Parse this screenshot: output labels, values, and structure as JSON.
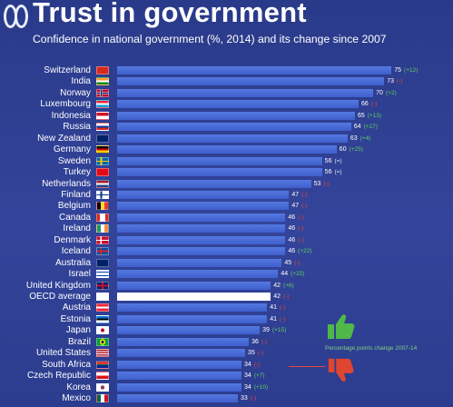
{
  "header": {
    "title": "Trust in government",
    "subtitle": "Confidence in national government (%, 2014) and its change since 2007"
  },
  "legend": {
    "note": "Percentage points change 2007-14",
    "icons": {
      "positive": "thumbs-up-icon",
      "negative": "thumbs-down-icon"
    }
  },
  "colors": {
    "background": "#2f3f8c",
    "bar": "#4a6cd6",
    "highlight_bar": "#ffffff",
    "positive_change": "#5fcf5f",
    "negative_change": "#e2483a",
    "thumb_up": "#4fb848",
    "thumb_down": "#e0452f"
  },
  "chart_data": {
    "type": "bar",
    "orientation": "horizontal",
    "title": "Trust in government",
    "subtitle": "Confidence in national government (%, 2014) and its change since 2007",
    "xlim": [
      0,
      100
    ],
    "grid": false,
    "categories": [
      "Switzerland",
      "India",
      "Norway",
      "Luxembourg",
      "Indonesia",
      "Russia",
      "New Zealand",
      "Germany",
      "Sweden",
      "Turkey",
      "Netherlands",
      "Finland",
      "Belgium",
      "Canada",
      "Ireland",
      "Denmark",
      "Iceland",
      "Australia",
      "Israel",
      "United Kingdom",
      "OECD average",
      "Austria",
      "Estonia",
      "Japan",
      "Brazil",
      "United States",
      "South Africa",
      "Czech Republic",
      "Korea",
      "Mexico"
    ],
    "values": [
      75,
      73,
      70,
      66,
      65,
      64,
      63,
      60,
      56,
      56,
      53,
      47,
      47,
      46,
      46,
      46,
      46,
      45,
      44,
      42,
      42,
      41,
      41,
      39,
      36,
      35,
      34,
      34,
      34,
      33
    ],
    "change_labels": [
      "(+12)",
      "(-)",
      "(+2)",
      "(-)",
      "(+13)",
      "(+27)",
      "(+4)",
      "(+25)",
      "(=)",
      "(=)",
      "(-)",
      "(-)",
      "(-)",
      "(-)",
      "(-)",
      "(-)",
      "(+22)",
      "(-)",
      "(+22)",
      "(+6)",
      "(-)",
      "(-)",
      "(-)",
      "(+15)",
      "(-)",
      "(-)",
      "(-)",
      "(+7)",
      "(+10)",
      "(-)"
    ],
    "change_sign": [
      "pos",
      "neg",
      "pos",
      "neg",
      "pos",
      "pos",
      "pos",
      "pos",
      "zero",
      "zero",
      "neg",
      "neg",
      "neg",
      "neg",
      "neg",
      "neg",
      "pos",
      "neg",
      "pos",
      "pos",
      "neg",
      "neg",
      "neg",
      "pos",
      "neg",
      "neg",
      "neg",
      "pos",
      "pos",
      "neg"
    ],
    "highlight": "OECD average",
    "flags": [
      "CH",
      "IN",
      "NO",
      "LU",
      "ID",
      "RU",
      "NZ",
      "DE",
      "SE",
      "TR",
      "NL",
      "FI",
      "BE",
      "CA",
      "IE",
      "DK",
      "IS",
      "AU",
      "IL",
      "GB",
      "OECD",
      "AT",
      "EE",
      "JP",
      "BR",
      "US",
      "ZA",
      "CZ",
      "KR",
      "MX"
    ]
  }
}
